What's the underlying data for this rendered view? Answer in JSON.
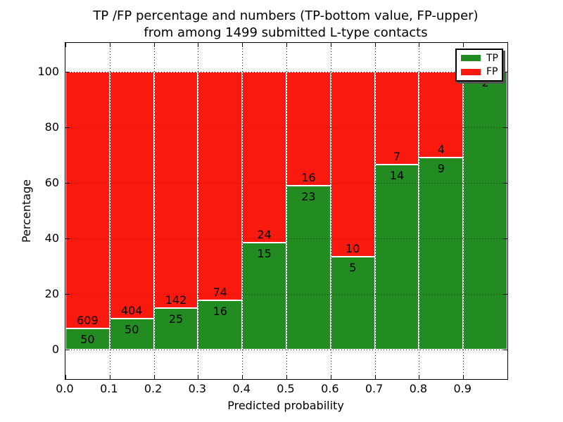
{
  "title": {
    "line1": "TP /FP percentage and numbers (TP-bottom value, FP-upper)",
    "line2": "from among 1499 submitted L-type contacts"
  },
  "axes": {
    "ylabel": "Percentage",
    "xlabel": "Predicted probability",
    "ytick_labels": [
      "0",
      "20",
      "40",
      "60",
      "80",
      "100"
    ],
    "xtick_labels": [
      "0.0",
      "0.1",
      "0.2",
      "0.3",
      "0.4",
      "0.5",
      "0.6",
      "0.7",
      "0.8",
      "0.9"
    ]
  },
  "legend": {
    "items": [
      {
        "label": "TP",
        "color": "#228b22"
      },
      {
        "label": "FP",
        "color": "#fa190f"
      }
    ]
  },
  "colors": {
    "tp_green": "#228b22",
    "fp_red": "#fa190f",
    "grid": "#000000",
    "bar_edge": "#ffffff"
  },
  "chart_data": {
    "type": "bar",
    "subtype": "stacked-percentage",
    "title": "TP /FP percentage and numbers (TP-bottom value, FP-upper) from among 1499 submitted L-type contacts",
    "xlabel": "Predicted probability",
    "ylabel": "Percentage",
    "total_contacts": 1499,
    "x_bins": [
      "0.0-0.1",
      "0.1-0.2",
      "0.2-0.3",
      "0.3-0.4",
      "0.4-0.5",
      "0.5-0.6",
      "0.6-0.7",
      "0.7-0.8",
      "0.8-0.9",
      "0.9-1.0"
    ],
    "series": [
      {
        "name": "TP",
        "position": "bottom",
        "color": "#228b22",
        "counts": [
          50,
          50,
          25,
          16,
          15,
          23,
          5,
          14,
          9,
          2
        ]
      },
      {
        "name": "FP",
        "position": "top",
        "color": "#fa190f",
        "counts": [
          609,
          404,
          142,
          74,
          24,
          16,
          10,
          7,
          4,
          0
        ]
      }
    ],
    "tp_percent_of_bin": [
      7.6,
      11.0,
      15.0,
      17.8,
      38.5,
      59.0,
      33.3,
      66.7,
      69.2,
      100.0
    ],
    "xticks": [
      0.0,
      0.1,
      0.2,
      0.3,
      0.4,
      0.5,
      0.6,
      0.7,
      0.8,
      0.9
    ],
    "yticks": [
      0,
      20,
      40,
      60,
      80,
      100
    ],
    "grid": true,
    "grid_style": "dotted-black-above-bars",
    "legend_position": "upper-right"
  }
}
